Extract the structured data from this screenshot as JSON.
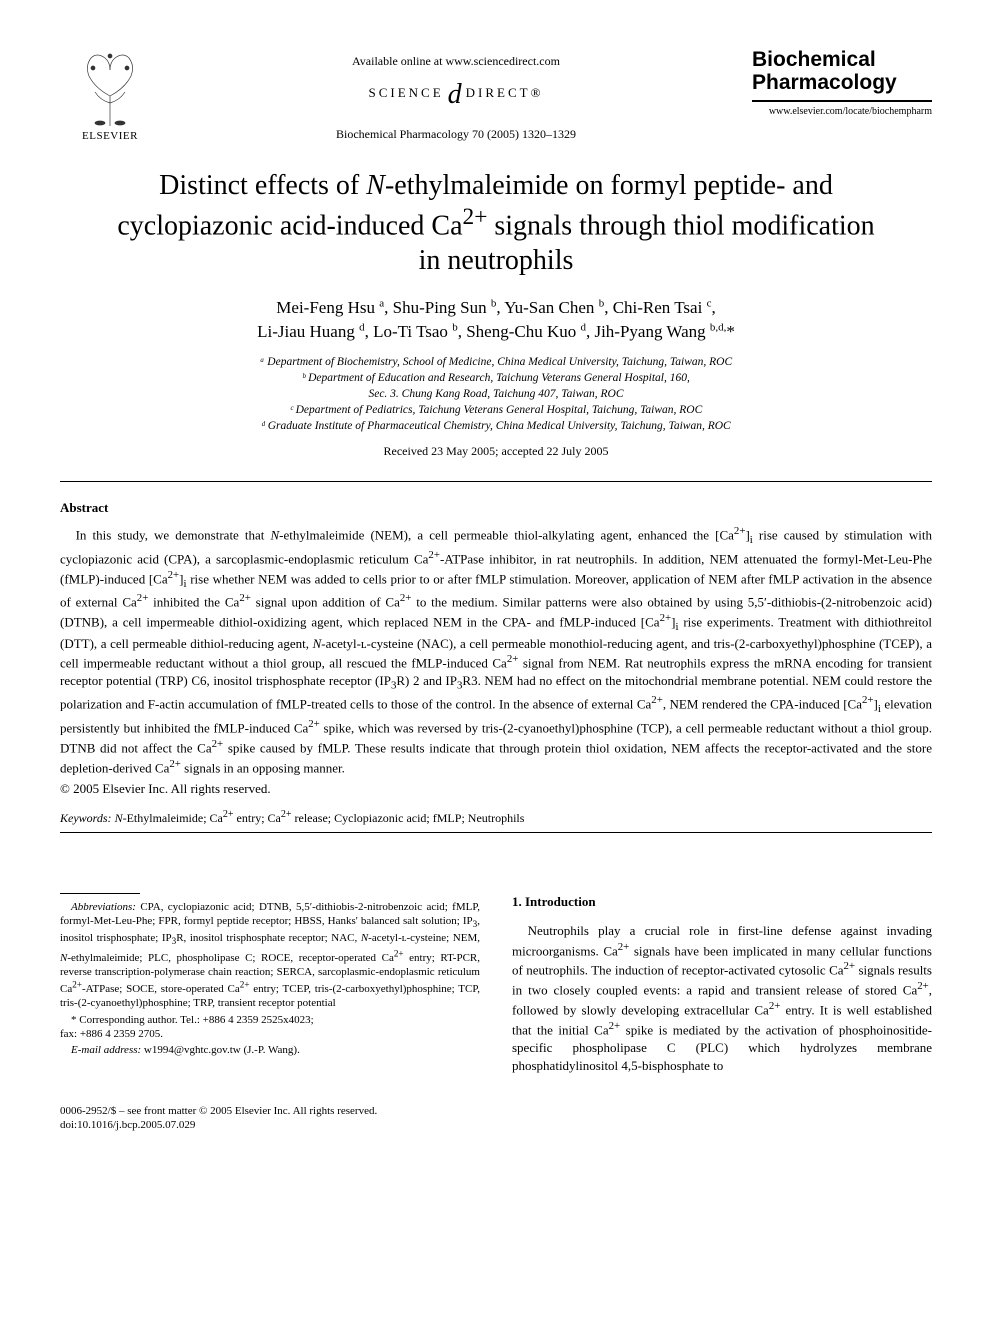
{
  "header": {
    "available_line": "Available online at www.sciencedirect.com",
    "sd_left": "SCIENCE",
    "sd_symbol": "d",
    "sd_right": "DIRECT®",
    "citation": "Biochemical Pharmacology 70 (2005) 1320–1329",
    "elsevier_label": "ELSEVIER",
    "journal_name_1": "Biochemical",
    "journal_name_2": "Pharmacology",
    "journal_url": "www.elsevier.com/locate/biochempharm"
  },
  "title_html": "Distinct effects of <i>N</i>-ethylmaleimide on formyl peptide- and cyclopiazonic acid-induced Ca<sup>2+</sup> signals through thiol modification in neutrophils",
  "authors_html": "Mei-Feng Hsu <span class='sup'>a</span>, Shu-Ping Sun <span class='sup'>b</span>, Yu-San Chen <span class='sup'>b</span>, Chi-Ren Tsai <span class='sup'>c</span>,<br>Li-Jiau Huang <span class='sup'>d</span>, Lo-Ti Tsao <span class='sup'>b</span>, Sheng-Chu Kuo <span class='sup'>d</span>, Jih-Pyang Wang <span class='sup'>b,d,</span>*",
  "affiliations": [
    "ᵃ Department of Biochemistry, School of Medicine, China Medical University, Taichung, Taiwan, ROC",
    "ᵇ Department of Education and Research, Taichung Veterans General Hospital, 160,",
    "Sec. 3. Chung Kang Road, Taichung 407, Taiwan, ROC",
    "ᶜ Department of Pediatrics, Taichung Veterans General Hospital, Taichung, Taiwan, ROC",
    "ᵈ Graduate Institute of Pharmaceutical Chemistry, China Medical University, Taichung, Taiwan, ROC"
  ],
  "dates": "Received 23 May 2005; accepted 22 July 2005",
  "abstract": {
    "heading": "Abstract",
    "body_html": "In this study, we demonstrate that <i>N</i>-ethylmaleimide (NEM), a cell permeable thiol-alkylating agent, enhanced the [Ca<sup>2+</sup>]<sub>i</sub> rise caused by stimulation with cyclopiazonic acid (CPA), a sarcoplasmic-endoplasmic reticulum Ca<sup>2+</sup>-ATPase inhibitor, in rat neutrophils. In addition, NEM attenuated the formyl-Met-Leu-Phe (fMLP)-induced [Ca<sup>2+</sup>]<sub>i</sub> rise whether NEM was added to cells prior to or after fMLP stimulation. Moreover, application of NEM after fMLP activation in the absence of external Ca<sup>2+</sup> inhibited the Ca<sup>2+</sup> signal upon addition of Ca<sup>2+</sup> to the medium. Similar patterns were also obtained by using 5,5′-dithiobis-(2-nitrobenzoic acid) (DTNB), a cell impermeable dithiol-oxidizing agent, which replaced NEM in the CPA- and fMLP-induced [Ca<sup>2+</sup>]<sub>i</sub> rise experiments. Treatment with dithiothreitol (DTT), a cell permeable dithiol-reducing agent, <i>N</i>-acetyl-ʟ-cysteine (NAC), a cell permeable monothiol-reducing agent, and tris-(2-carboxyethyl)phosphine (TCEP), a cell impermeable reductant without a thiol group, all rescued the fMLP-induced Ca<sup>2+</sup> signal from NEM. Rat neutrophils express the mRNA encoding for transient receptor potential (TRP) C6, inositol trisphosphate receptor (IP<sub>3</sub>R) 2 and IP<sub>3</sub>R3. NEM had no effect on the mitochondrial membrane potential. NEM could restore the polarization and F-actin accumulation of fMLP-treated cells to those of the control. In the absence of external Ca<sup>2+</sup>, NEM rendered the CPA-induced [Ca<sup>2+</sup>]<sub>i</sub> elevation persistently but inhibited the fMLP-induced Ca<sup>2+</sup> spike, which was reversed by tris-(2-cyanoethyl)phosphine (TCP), a cell permeable reductant without a thiol group. DTNB did not affect the Ca<sup>2+</sup> spike caused by fMLP. These results indicate that through protein thiol oxidation, NEM affects the receptor-activated and the store depletion-derived Ca<sup>2+</sup> signals in an opposing manner.",
    "copyright": "© 2005 Elsevier Inc. All rights reserved."
  },
  "keywords": {
    "label": "Keywords:",
    "text_html": " <i>N</i>-Ethylmaleimide; Ca<sup>2+</sup> entry; Ca<sup>2+</sup> release; Cyclopiazonic acid; fMLP; Neutrophils"
  },
  "footnotes": {
    "abbrev_label": "Abbreviations:",
    "abbrev_text_html": " CPA, cyclopiazonic acid; DTNB, 5,5′-dithiobis-2-nitrobenzoic acid; fMLP, formyl-Met-Leu-Phe; FPR, formyl peptide receptor; HBSS, Hanks' balanced salt solution; IP<sub>3</sub>, inositol trisphosphate; IP<sub>3</sub>R, inositol trisphosphate receptor; NAC, <i>N</i>-acetyl-ʟ-cysteine; NEM, <i>N</i>-ethylmaleimide; PLC, phospholipase C; ROCE, receptor-operated Ca<sup>2+</sup> entry; RT-PCR, reverse transcription-polymerase chain reaction; SERCA, sarcoplasmic-endoplasmic reticulum Ca<sup>2+</sup>-ATPase; SOCE, store-operated Ca<sup>2+</sup> entry; TCEP, tris-(2-carboxyethyl)phosphine; TCP, tris-(2-cyanoethyl)phosphine; TRP, transient receptor potential",
    "corr_html": "* Corresponding author. Tel.: +886 4 2359 2525x4023;<br>fax: +886 4 2359 2705.",
    "email_label": "E-mail address:",
    "email_text": " w1994@vghtc.gov.tw (J.-P. Wang)."
  },
  "intro": {
    "heading": "1.  Introduction",
    "body_html": "Neutrophils play a crucial role in first-line defense against invading microorganisms. Ca<sup>2+</sup> signals have been implicated in many cellular functions of neutrophils. The induction of receptor-activated cytosolic Ca<sup>2+</sup> signals results in two closely coupled events: a rapid and transient release of stored Ca<sup>2+</sup>, followed by slowly developing extracellular Ca<sup>2+</sup> entry. It is well established that the initial Ca<sup>2+</sup> spike is mediated by the activation of phosphoinositide-specific phospholipase C (PLC) which hydrolyzes membrane phosphatidylinositol 4,5-bisphosphate to"
  },
  "footer": {
    "line1": "0006-2952/$ – see front matter © 2005 Elsevier Inc. All rights reserved.",
    "line2": "doi:10.1016/j.bcp.2005.07.029"
  }
}
